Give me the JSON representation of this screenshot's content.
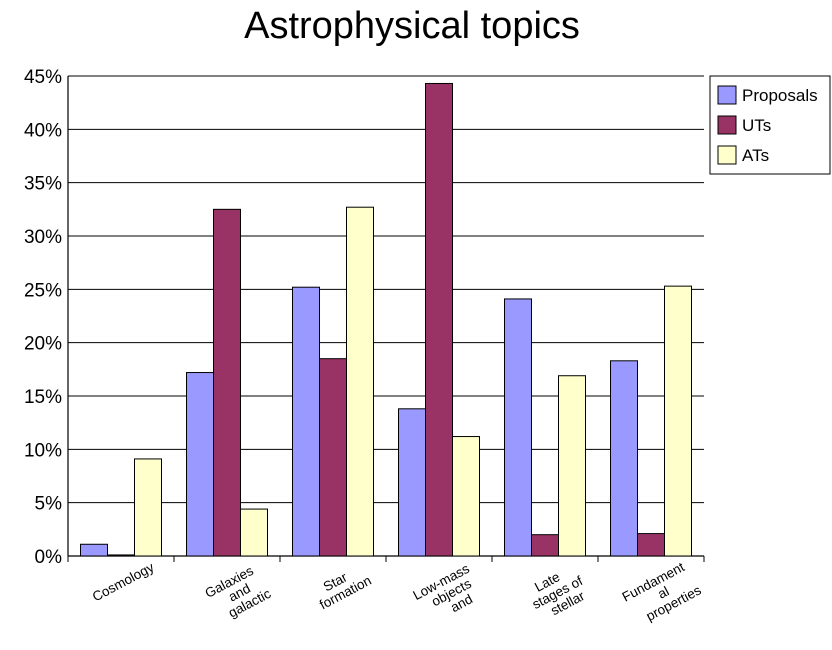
{
  "chart_data": {
    "type": "bar",
    "title": "Astrophysical topics",
    "xlabel": "",
    "ylabel": "",
    "ylim": [
      0,
      45
    ],
    "y_ticks": [
      "0%",
      "5%",
      "10%",
      "15%",
      "20%",
      "25%",
      "30%",
      "35%",
      "40%",
      "45%"
    ],
    "grid": true,
    "legend_position": "top-right",
    "categories": [
      [
        "Cosmology"
      ],
      [
        "Galaxies",
        "and",
        "galactic"
      ],
      [
        "Star",
        "formation"
      ],
      [
        "Low-mass",
        "objects",
        "and"
      ],
      [
        "Late",
        "stages of",
        "stellar"
      ],
      [
        "Fundament",
        "al",
        "properties"
      ]
    ],
    "series": [
      {
        "name": "Proposals",
        "color": "#9999ff",
        "values": [
          1.1,
          17.2,
          25.2,
          13.8,
          24.1,
          18.3
        ]
      },
      {
        "name": "UTs",
        "color": "#993366",
        "values": [
          0.1,
          32.5,
          18.5,
          44.3,
          2.0,
          2.1
        ]
      },
      {
        "name": "ATs",
        "color": "#ffffcc",
        "values": [
          9.1,
          4.4,
          32.7,
          11.2,
          16.9,
          25.3
        ]
      }
    ]
  }
}
